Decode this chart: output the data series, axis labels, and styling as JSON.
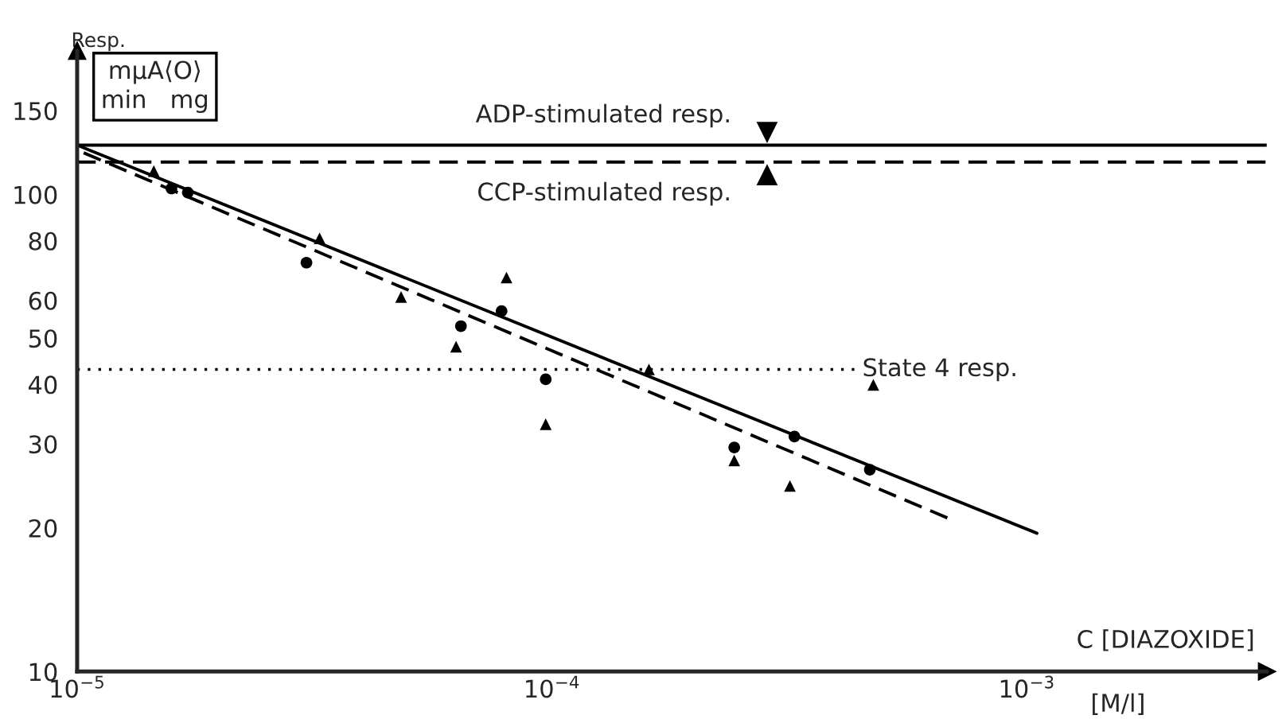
{
  "chart_data": {
    "type": "scatter",
    "ylabel": "Resp.",
    "xlabel": "C [DIAZOXIDE]",
    "annotations": [
      "mμA⟨O⟩\nmin   mg",
      "[M/l]"
    ],
    "log": "xy",
    "xlim": [
      1e-05,
      0.0032
    ],
    "xticks": [
      {
        "value": 1e-05,
        "label": "10$^{−5}$"
      },
      {
        "value": 0.0001,
        "label": "10$^{−4}$"
      },
      {
        "value": 0.001,
        "label": "10$^{−3}$"
      }
    ],
    "ylim": [
      10,
      200
    ],
    "yticks": [
      10,
      20,
      30,
      40,
      50,
      60,
      80,
      100,
      150
    ],
    "series": [
      {
        "type": "scatter",
        "marker": "circle",
        "color": "#000000",
        "x": [
          1.58e-05,
          1.71e-05,
          3.04e-05,
          6.43e-05,
          7.83e-05,
          9.7e-05,
          0.000242,
          0.000324,
          0.000467
        ],
        "values": [
          103,
          101,
          72,
          53,
          57,
          41,
          29.5,
          31.1,
          26.5
        ]
      },
      {
        "type": "scatter",
        "marker": "triangle",
        "color": "#000000",
        "x": [
          1.45e-05,
          3.24e-05,
          4.81e-05,
          6.28e-05,
          8.02e-05,
          9.7e-05,
          0.00016,
          0.000242,
          0.000317,
          0.000475
        ],
        "values": [
          112,
          81,
          61,
          48,
          67,
          33,
          43,
          27.7,
          24.5,
          39.9
        ]
      },
      {
        "type": "line",
        "line_style": "solid",
        "color": "#000000",
        "x": [
          1e-05,
          0.00105
        ],
        "values": [
          127,
          19.5
        ]
      },
      {
        "type": "line",
        "line_style": "dashed",
        "color": "#000000",
        "x": [
          1e-05,
          0.00068
        ],
        "values": [
          124,
          21
        ]
      }
    ],
    "ref_lines": [
      {
        "axis": "y",
        "value": 127,
        "label": "ADP-stimulated resp.",
        "line_style": "solid",
        "color": "#000000"
      },
      {
        "axis": "y",
        "value": 117,
        "label": "CCP-stimulated resp.",
        "line_style": "dashed",
        "color": "#000000"
      },
      {
        "axis": "y",
        "value": 43,
        "label": "State 4 resp.",
        "line_style": "dotted",
        "color": "#000000"
      }
    ],
    "grid": false
  }
}
